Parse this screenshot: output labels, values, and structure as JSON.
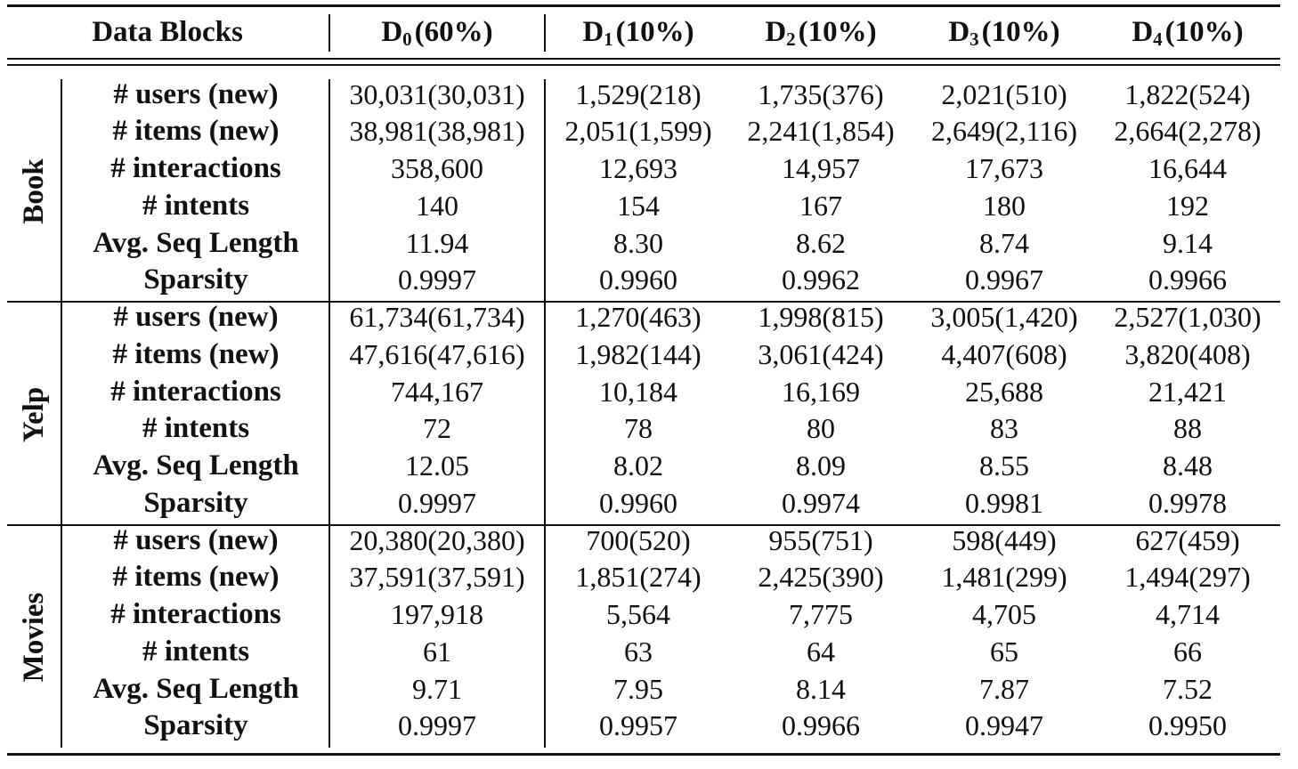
{
  "header": {
    "first": "Data Blocks",
    "blocks": [
      {
        "sym": "D",
        "sub": "0",
        "pct": "(60%)"
      },
      {
        "sym": "D",
        "sub": "1",
        "pct": "(10%)"
      },
      {
        "sym": "D",
        "sub": "2",
        "pct": "(10%)"
      },
      {
        "sym": "D",
        "sub": "3",
        "pct": "(10%)"
      },
      {
        "sym": "D",
        "sub": "4",
        "pct": "(10%)"
      }
    ]
  },
  "groups": [
    {
      "name": "Book",
      "rows": [
        {
          "label": "# users (new)",
          "values": [
            "30,031(30,031)",
            "1,529(218)",
            "1,735(376)",
            "2,021(510)",
            "1,822(524)"
          ]
        },
        {
          "label": "# items (new)",
          "values": [
            "38,981(38,981)",
            "2,051(1,599)",
            "2,241(1,854)",
            "2,649(2,116)",
            "2,664(2,278)"
          ]
        },
        {
          "label": "# interactions",
          "values": [
            "358,600",
            "12,693",
            "14,957",
            "17,673",
            "16,644"
          ]
        },
        {
          "label": "# intents",
          "values": [
            "140",
            "154",
            "167",
            "180",
            "192"
          ]
        },
        {
          "label": "Avg. Seq Length",
          "values": [
            "11.94",
            "8.30",
            "8.62",
            "8.74",
            "9.14"
          ]
        },
        {
          "label": "Sparsity",
          "values": [
            "0.9997",
            "0.9960",
            "0.9962",
            "0.9967",
            "0.9966"
          ]
        }
      ]
    },
    {
      "name": "Yelp",
      "rows": [
        {
          "label": "# users (new)",
          "values": [
            "61,734(61,734)",
            "1,270(463)",
            "1,998(815)",
            "3,005(1,420)",
            "2,527(1,030)"
          ]
        },
        {
          "label": "# items (new)",
          "values": [
            "47,616(47,616)",
            "1,982(144)",
            "3,061(424)",
            "4,407(608)",
            "3,820(408)"
          ]
        },
        {
          "label": "# interactions",
          "values": [
            "744,167",
            "10,184",
            "16,169",
            "25,688",
            "21,421"
          ]
        },
        {
          "label": "# intents",
          "values": [
            "72",
            "78",
            "80",
            "83",
            "88"
          ]
        },
        {
          "label": "Avg. Seq Length",
          "values": [
            "12.05",
            "8.02",
            "8.09",
            "8.55",
            "8.48"
          ]
        },
        {
          "label": "Sparsity",
          "values": [
            "0.9997",
            "0.9960",
            "0.9974",
            "0.9981",
            "0.9978"
          ]
        }
      ]
    },
    {
      "name": "Movies",
      "rows": [
        {
          "label": "# users (new)",
          "values": [
            "20,380(20,380)",
            "700(520)",
            "955(751)",
            "598(449)",
            "627(459)"
          ]
        },
        {
          "label": "# items (new)",
          "values": [
            "37,591(37,591)",
            "1,851(274)",
            "2,425(390)",
            "1,481(299)",
            "1,494(297)"
          ]
        },
        {
          "label": "# interactions",
          "values": [
            "197,918",
            "5,564",
            "7,775",
            "4,705",
            "4,714"
          ]
        },
        {
          "label": "# intents",
          "values": [
            "61",
            "63",
            "64",
            "65",
            "66"
          ]
        },
        {
          "label": "Avg. Seq Length",
          "values": [
            "9.71",
            "7.95",
            "8.14",
            "7.87",
            "7.52"
          ]
        },
        {
          "label": "Sparsity",
          "values": [
            "0.9997",
            "0.9957",
            "0.9966",
            "0.9947",
            "0.9950"
          ]
        }
      ]
    }
  ]
}
